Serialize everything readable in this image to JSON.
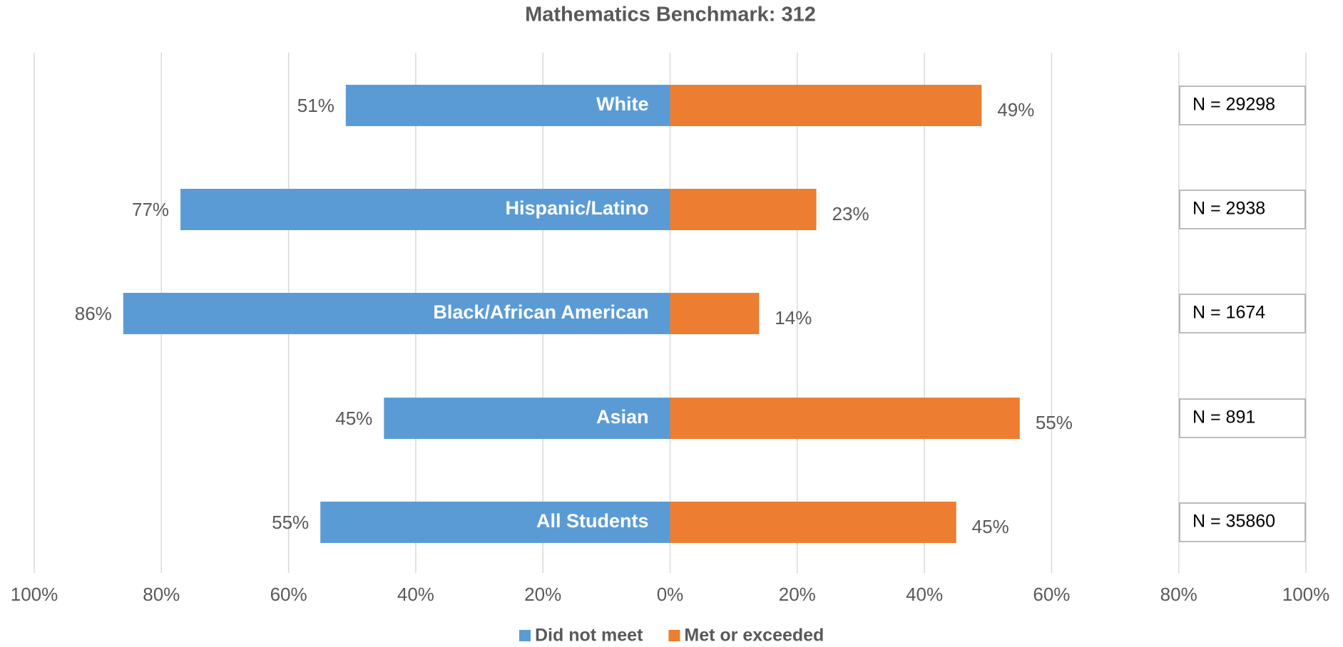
{
  "chart_data": {
    "type": "diverging_bar",
    "title": "Mathematics Benchmark: 312",
    "categories": [
      "White",
      "Hispanic/Latino",
      "Black/African American",
      "Asian",
      "All Students"
    ],
    "series": [
      {
        "name": "Did not meet",
        "color": "#5b9bd5",
        "values": [
          -51,
          -77,
          -86,
          -45,
          -55
        ],
        "value_labels": [
          "51%",
          "77%",
          "86%",
          "45%",
          "55%"
        ]
      },
      {
        "name": "Met or exceeded",
        "color": "#ed7d31",
        "values": [
          49,
          23,
          14,
          55,
          45
        ],
        "value_labels": [
          "49%",
          "23%",
          "14%",
          "55%",
          "45%"
        ]
      }
    ],
    "annotations": [
      "N = 29298",
      "N = 2938",
      "N = 1674",
      "N = 891",
      "N = 35860"
    ],
    "xlim": [
      -100,
      100
    ],
    "xticks": [
      {
        "value": -100,
        "label": "100%"
      },
      {
        "value": -80,
        "label": "80%"
      },
      {
        "value": -60,
        "label": "60%"
      },
      {
        "value": -40,
        "label": "40%"
      },
      {
        "value": -20,
        "label": "20%"
      },
      {
        "value": 0,
        "label": "0%"
      },
      {
        "value": 20,
        "label": "20%"
      },
      {
        "value": 40,
        "label": "40%"
      },
      {
        "value": 60,
        "label": "60%"
      },
      {
        "value": 80,
        "label": "80%"
      },
      {
        "value": 100,
        "label": "100%"
      }
    ],
    "grid": true,
    "legend": "bottom"
  }
}
